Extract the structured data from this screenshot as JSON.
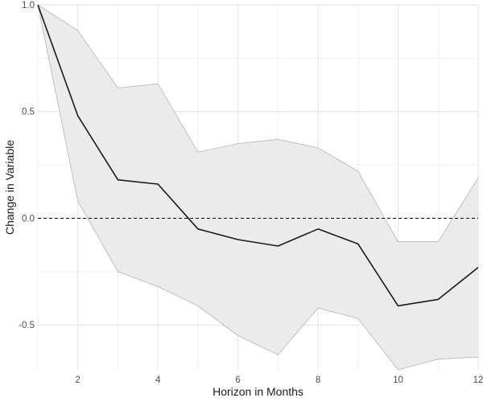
{
  "chart_data": {
    "type": "line",
    "title": "",
    "xlabel": "Horizon in Months",
    "ylabel": "Change in Variable",
    "xlim": [
      1,
      12
    ],
    "ylim": [
      -0.71,
      1.0
    ],
    "x_ticks": [
      2,
      4,
      6,
      8,
      10,
      12
    ],
    "y_ticks": [
      -0.5,
      0.0,
      0.5,
      1.0
    ],
    "x_tick_labels": [
      "2",
      "4",
      "6",
      "8",
      "10",
      "12"
    ],
    "y_tick_labels": [
      "-0.5",
      "0.0",
      "0.5",
      "1.0"
    ],
    "grid": true,
    "legend": "none",
    "reference_line": {
      "y": 0,
      "style": "dashed"
    },
    "x": [
      1,
      2,
      3,
      4,
      5,
      6,
      7,
      8,
      9,
      10,
      11,
      12
    ],
    "series": [
      {
        "values": [
          1.0,
          0.48,
          0.18,
          0.16,
          -0.05,
          -0.1,
          -0.13,
          -0.05,
          -0.12,
          -0.41,
          -0.38,
          -0.23
        ]
      }
    ],
    "band": {
      "upper": [
        1.0,
        0.88,
        0.61,
        0.63,
        0.31,
        0.35,
        0.37,
        0.33,
        0.22,
        -0.11,
        -0.11,
        0.19
      ],
      "lower": [
        1.0,
        0.08,
        -0.25,
        -0.32,
        -0.41,
        -0.55,
        -0.64,
        -0.42,
        -0.47,
        -0.71,
        -0.66,
        -0.65
      ]
    },
    "colors": {
      "line": "#1a1a1a",
      "band_fill": "#ebebeb",
      "band_edge": "#b5b5b5",
      "grid_major": "#e2e2e2",
      "grid_minor": "#f0f0f0"
    }
  }
}
